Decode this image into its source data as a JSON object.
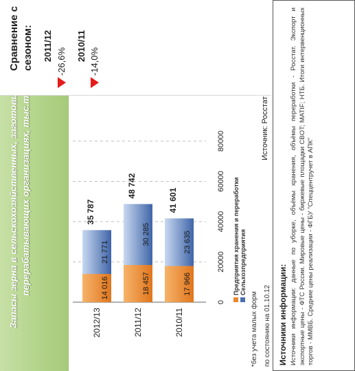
{
  "header": {
    "line1": "Запасы зерна в сельскохозяйственных, заготовительных и",
    "line2": "перерабатывающих организациях, тыс.тонн*"
  },
  "chart_data": {
    "type": "bar",
    "orientation": "horizontal",
    "stacked": true,
    "categories": [
      "2012/13",
      "2011/12",
      "2010/11"
    ],
    "series": [
      {
        "name": "Предприятия хранения и переработки",
        "color": "#e8872e",
        "values": [
          14016,
          18457,
          17966
        ]
      },
      {
        "name": "Сельхозпредприятия",
        "color": "#4a6fae",
        "values": [
          21771,
          30285,
          23635
        ]
      }
    ],
    "totals": [
      35787,
      48742,
      41601
    ],
    "value_labels": [
      [
        "14 016",
        "18 457",
        "17 966"
      ],
      [
        "21 771",
        "30 285",
        "23 635"
      ]
    ],
    "total_labels": [
      "35 787",
      "48 742",
      "41 601"
    ],
    "xlim": [
      0,
      80000
    ],
    "ticks": [
      "0",
      "20000",
      "40000",
      "60000",
      "80000"
    ],
    "grid": true,
    "legend_position": "bottom"
  },
  "notes": {
    "footnote": "*без учета малых форм",
    "as_of": "по состоянию на 01.10.12",
    "source": "Источник: Росстат"
  },
  "comparison": {
    "title_line1": "Сравнение с",
    "title_line2": "сезоном:",
    "items": [
      {
        "season": "2011/12",
        "change": "-26,6%",
        "color": "#e51b1b"
      },
      {
        "season": "2010/11",
        "change": "-14,0%",
        "color": "#e51b1b"
      }
    ]
  },
  "sources": {
    "title": "Источники информации:",
    "body": "Источники информации: данные по уборке, объёмы хранения, объёмы переработки - Росстат. Экспорт и экспортные цены - ФТС России. Мировые цены - биржевые площадки CBOT; MATIF; НТБ. Итоги интервенционных торгов - ММВБ. Средние цены реализации - ФГБУ \"Спеццентручет в АПК\""
  }
}
